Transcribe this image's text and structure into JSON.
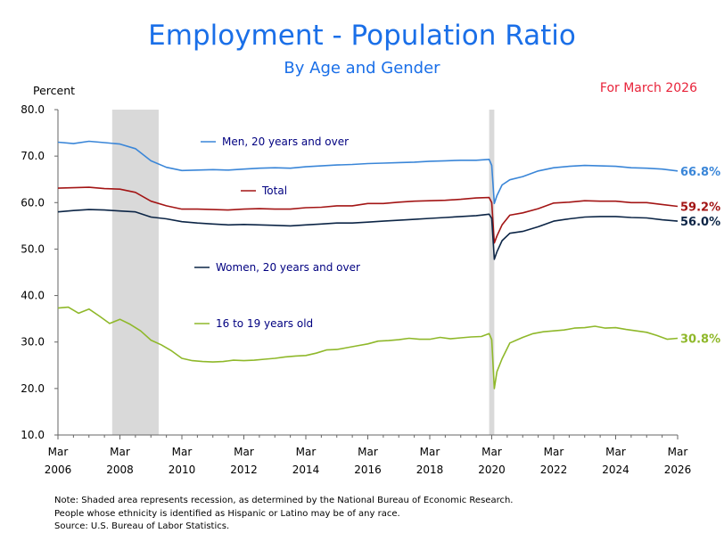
{
  "header": {
    "title": "Employment - Population Ratio",
    "subtitle": "By Age and Gender",
    "date_label": "For March 2026"
  },
  "notes": [
    "Note: Shaded area represents recession, as determined by the National Bureau of Economic Research.",
    "People whose ethnicity is identified as Hispanic or Latino may be of any race.",
    "Source: U.S. Bureau of Labor Statistics."
  ],
  "chart_data": {
    "type": "line",
    "ylabel": "Percent",
    "ylim": [
      10,
      80
    ],
    "yticks": [
      "10.0",
      "20.0",
      "30.0",
      "40.0",
      "50.0",
      "60.0",
      "70.0",
      "80.0"
    ],
    "xlim": [
      "2006-03",
      "2026-03"
    ],
    "xticks": [
      {
        "month": "Mar",
        "year": "2006"
      },
      {
        "month": "Mar",
        "year": "2008"
      },
      {
        "month": "Mar",
        "year": "2010"
      },
      {
        "month": "Mar",
        "year": "2012"
      },
      {
        "month": "Mar",
        "year": "2014"
      },
      {
        "month": "Mar",
        "year": "2016"
      },
      {
        "month": "Mar",
        "year": "2018"
      },
      {
        "month": "Mar",
        "year": "2020"
      },
      {
        "month": "Mar",
        "year": "2022"
      },
      {
        "month": "Mar",
        "year": "2024"
      },
      {
        "month": "Mar",
        "year": "2026"
      }
    ],
    "grid": false,
    "recessions": [
      {
        "start": "2007-12",
        "end": "2009-06"
      },
      {
        "start": "2020-02",
        "end": "2020-04"
      }
    ],
    "series": [
      {
        "name": "Men, 20 years and over",
        "color": "#3a86d8",
        "end_label": "66.8%",
        "points": [
          [
            "2006-03",
            73.0
          ],
          [
            "2006-09",
            72.7
          ],
          [
            "2007-03",
            73.2
          ],
          [
            "2007-09",
            72.9
          ],
          [
            "2008-03",
            72.6
          ],
          [
            "2008-09",
            71.6
          ],
          [
            "2009-03",
            69.0
          ],
          [
            "2009-09",
            67.6
          ],
          [
            "2010-03",
            66.9
          ],
          [
            "2010-09",
            67.0
          ],
          [
            "2011-03",
            67.1
          ],
          [
            "2011-09",
            67.0
          ],
          [
            "2012-03",
            67.2
          ],
          [
            "2012-09",
            67.4
          ],
          [
            "2013-03",
            67.5
          ],
          [
            "2013-09",
            67.4
          ],
          [
            "2014-03",
            67.7
          ],
          [
            "2014-09",
            67.9
          ],
          [
            "2015-03",
            68.1
          ],
          [
            "2015-09",
            68.2
          ],
          [
            "2016-03",
            68.4
          ],
          [
            "2016-09",
            68.5
          ],
          [
            "2017-03",
            68.6
          ],
          [
            "2017-09",
            68.7
          ],
          [
            "2018-03",
            68.9
          ],
          [
            "2018-09",
            69.0
          ],
          [
            "2019-03",
            69.1
          ],
          [
            "2019-09",
            69.1
          ],
          [
            "2020-02",
            69.3
          ],
          [
            "2020-03",
            68.0
          ],
          [
            "2020-04",
            59.8
          ],
          [
            "2020-05",
            61.5
          ],
          [
            "2020-07",
            63.8
          ],
          [
            "2020-10",
            64.9
          ],
          [
            "2021-03",
            65.6
          ],
          [
            "2021-09",
            66.8
          ],
          [
            "2022-03",
            67.5
          ],
          [
            "2022-09",
            67.8
          ],
          [
            "2023-03",
            68.0
          ],
          [
            "2023-09",
            67.9
          ],
          [
            "2024-03",
            67.8
          ],
          [
            "2024-09",
            67.5
          ],
          [
            "2025-03",
            67.4
          ],
          [
            "2025-09",
            67.2
          ],
          [
            "2026-03",
            66.8
          ]
        ]
      },
      {
        "name": "Total",
        "color": "#a31515",
        "end_label": "59.2%",
        "points": [
          [
            "2006-03",
            63.1
          ],
          [
            "2006-09",
            63.2
          ],
          [
            "2007-03",
            63.3
          ],
          [
            "2007-09",
            63.0
          ],
          [
            "2008-03",
            62.9
          ],
          [
            "2008-09",
            62.2
          ],
          [
            "2009-03",
            60.3
          ],
          [
            "2009-09",
            59.3
          ],
          [
            "2010-03",
            58.6
          ],
          [
            "2010-09",
            58.6
          ],
          [
            "2011-03",
            58.5
          ],
          [
            "2011-09",
            58.4
          ],
          [
            "2012-03",
            58.6
          ],
          [
            "2012-09",
            58.7
          ],
          [
            "2013-03",
            58.6
          ],
          [
            "2013-09",
            58.6
          ],
          [
            "2014-03",
            58.9
          ],
          [
            "2014-09",
            59.0
          ],
          [
            "2015-03",
            59.3
          ],
          [
            "2015-09",
            59.3
          ],
          [
            "2016-03",
            59.8
          ],
          [
            "2016-09",
            59.8
          ],
          [
            "2017-03",
            60.1
          ],
          [
            "2017-09",
            60.3
          ],
          [
            "2018-03",
            60.4
          ],
          [
            "2018-09",
            60.5
          ],
          [
            "2019-03",
            60.7
          ],
          [
            "2019-09",
            61.0
          ],
          [
            "2020-02",
            61.1
          ],
          [
            "2020-03",
            60.0
          ],
          [
            "2020-04",
            51.3
          ],
          [
            "2020-05",
            52.8
          ],
          [
            "2020-07",
            55.2
          ],
          [
            "2020-10",
            57.3
          ],
          [
            "2021-03",
            57.8
          ],
          [
            "2021-09",
            58.7
          ],
          [
            "2022-03",
            59.9
          ],
          [
            "2022-09",
            60.1
          ],
          [
            "2023-03",
            60.4
          ],
          [
            "2023-09",
            60.3
          ],
          [
            "2024-03",
            60.3
          ],
          [
            "2024-09",
            60.0
          ],
          [
            "2025-03",
            60.0
          ],
          [
            "2025-09",
            59.6
          ],
          [
            "2026-03",
            59.2
          ]
        ]
      },
      {
        "name": "Women, 20 years and over",
        "color": "#0c2546",
        "end_label": "56.0%",
        "points": [
          [
            "2006-03",
            58.0
          ],
          [
            "2006-09",
            58.3
          ],
          [
            "2007-03",
            58.5
          ],
          [
            "2007-09",
            58.4
          ],
          [
            "2008-03",
            58.2
          ],
          [
            "2008-09",
            58.0
          ],
          [
            "2009-03",
            56.9
          ],
          [
            "2009-09",
            56.5
          ],
          [
            "2010-03",
            55.9
          ],
          [
            "2010-09",
            55.6
          ],
          [
            "2011-03",
            55.4
          ],
          [
            "2011-09",
            55.2
          ],
          [
            "2012-03",
            55.3
          ],
          [
            "2012-09",
            55.2
          ],
          [
            "2013-03",
            55.1
          ],
          [
            "2013-09",
            55.0
          ],
          [
            "2014-03",
            55.2
          ],
          [
            "2014-09",
            55.4
          ],
          [
            "2015-03",
            55.6
          ],
          [
            "2015-09",
            55.6
          ],
          [
            "2016-03",
            55.8
          ],
          [
            "2016-09",
            56.0
          ],
          [
            "2017-03",
            56.2
          ],
          [
            "2017-09",
            56.4
          ],
          [
            "2018-03",
            56.6
          ],
          [
            "2018-09",
            56.8
          ],
          [
            "2019-03",
            57.0
          ],
          [
            "2019-09",
            57.2
          ],
          [
            "2020-02",
            57.5
          ],
          [
            "2020-03",
            56.6
          ],
          [
            "2020-04",
            47.8
          ],
          [
            "2020-05",
            49.4
          ],
          [
            "2020-07",
            51.8
          ],
          [
            "2020-10",
            53.4
          ],
          [
            "2021-03",
            53.8
          ],
          [
            "2021-09",
            54.8
          ],
          [
            "2022-03",
            56.0
          ],
          [
            "2022-09",
            56.5
          ],
          [
            "2023-03",
            56.9
          ],
          [
            "2023-09",
            57.0
          ],
          [
            "2024-03",
            57.0
          ],
          [
            "2024-09",
            56.8
          ],
          [
            "2025-03",
            56.7
          ],
          [
            "2025-09",
            56.3
          ],
          [
            "2026-03",
            56.0
          ]
        ]
      },
      {
        "name": "16 to 19 years old",
        "color": "#8fb82a",
        "end_label": "30.8%",
        "points": [
          [
            "2006-03",
            37.3
          ],
          [
            "2006-07",
            37.5
          ],
          [
            "2006-11",
            36.2
          ],
          [
            "2007-03",
            37.1
          ],
          [
            "2007-07",
            35.6
          ],
          [
            "2007-11",
            34.0
          ],
          [
            "2008-03",
            34.9
          ],
          [
            "2008-07",
            33.8
          ],
          [
            "2008-11",
            32.4
          ],
          [
            "2009-03",
            30.4
          ],
          [
            "2009-07",
            29.4
          ],
          [
            "2009-11",
            28.1
          ],
          [
            "2010-03",
            26.5
          ],
          [
            "2010-07",
            26.0
          ],
          [
            "2010-11",
            25.8
          ],
          [
            "2011-03",
            25.7
          ],
          [
            "2011-07",
            25.8
          ],
          [
            "2011-11",
            26.1
          ],
          [
            "2012-03",
            26.0
          ],
          [
            "2012-07",
            26.1
          ],
          [
            "2012-11",
            26.3
          ],
          [
            "2013-03",
            26.5
          ],
          [
            "2013-07",
            26.8
          ],
          [
            "2013-11",
            27.0
          ],
          [
            "2014-03",
            27.1
          ],
          [
            "2014-07",
            27.6
          ],
          [
            "2014-11",
            28.3
          ],
          [
            "2015-03",
            28.4
          ],
          [
            "2015-07",
            28.8
          ],
          [
            "2015-11",
            29.2
          ],
          [
            "2016-03",
            29.6
          ],
          [
            "2016-07",
            30.2
          ],
          [
            "2016-11",
            30.3
          ],
          [
            "2017-03",
            30.5
          ],
          [
            "2017-07",
            30.8
          ],
          [
            "2017-11",
            30.6
          ],
          [
            "2018-03",
            30.6
          ],
          [
            "2018-07",
            31.0
          ],
          [
            "2018-11",
            30.7
          ],
          [
            "2019-03",
            30.9
          ],
          [
            "2019-07",
            31.1
          ],
          [
            "2019-11",
            31.2
          ],
          [
            "2020-02",
            31.8
          ],
          [
            "2020-03",
            30.5
          ],
          [
            "2020-04",
            20.0
          ],
          [
            "2020-05",
            23.6
          ],
          [
            "2020-07",
            26.4
          ],
          [
            "2020-10",
            29.8
          ],
          [
            "2021-03",
            31.0
          ],
          [
            "2021-07",
            31.8
          ],
          [
            "2021-11",
            32.2
          ],
          [
            "2022-03",
            32.4
          ],
          [
            "2022-07",
            32.6
          ],
          [
            "2022-11",
            33.0
          ],
          [
            "2023-03",
            33.1
          ],
          [
            "2023-07",
            33.4
          ],
          [
            "2023-11",
            33.0
          ],
          [
            "2024-03",
            33.1
          ],
          [
            "2024-07",
            32.7
          ],
          [
            "2024-11",
            32.4
          ],
          [
            "2025-03",
            32.1
          ],
          [
            "2025-07",
            31.4
          ],
          [
            "2025-11",
            30.6
          ],
          [
            "2026-03",
            30.8
          ]
        ]
      }
    ]
  }
}
